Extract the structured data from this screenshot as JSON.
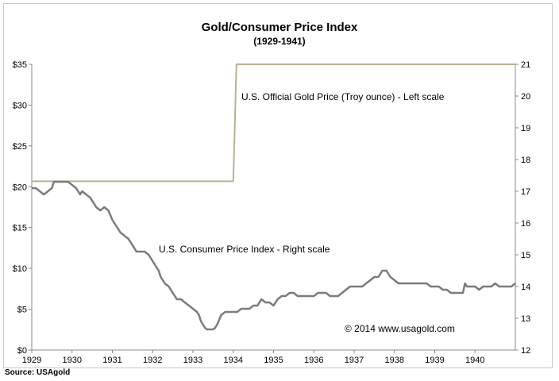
{
  "chart_data": {
    "type": "line",
    "title": "Gold/Consumer Price Index",
    "subtitle": "(1929-1941)",
    "source": "Source: USAgold",
    "copyright": "© 2014 www.usagold.com",
    "left_axis": {
      "ylim": [
        0,
        35
      ],
      "ticks": [
        0,
        5,
        10,
        15,
        20,
        25,
        30,
        35
      ],
      "tick_labels": [
        "$0",
        "$5",
        "$10",
        "$15",
        "$20",
        "$25",
        "$30",
        "$35"
      ]
    },
    "right_axis": {
      "ylim": [
        12,
        21
      ],
      "ticks": [
        12,
        13,
        14,
        15,
        16,
        17,
        18,
        19,
        20,
        21
      ],
      "tick_labels": [
        "12",
        "13",
        "14",
        "15",
        "16",
        "17",
        "18",
        "19",
        "20",
        "21"
      ]
    },
    "x_axis": {
      "xlim": [
        1929.0,
        1941.0
      ],
      "ticks": [
        1929,
        1930,
        1931,
        1932,
        1933,
        1934,
        1935,
        1936,
        1937,
        1938,
        1939,
        1940
      ],
      "tick_labels": [
        "1929",
        "1930",
        "1931",
        "1932",
        "1933",
        "1934",
        "1935",
        "1936",
        "1937",
        "1938",
        "1939",
        "1940"
      ]
    },
    "grid": false,
    "series": [
      {
        "name": "U.S. Official Gold Price (Troy ounce) - Left scale",
        "axis": "left",
        "color": "#b9b193",
        "points": [
          [
            1929.0,
            20.67
          ],
          [
            1934.0,
            20.67
          ],
          [
            1934.08,
            35.0
          ],
          [
            1941.0,
            35.0
          ]
        ]
      },
      {
        "name": "U.S. Consumer Price Index - Right scale",
        "axis": "right",
        "color": "#7b7b7b",
        "points": [
          [
            1929.0,
            17.1
          ],
          [
            1929.1,
            17.1
          ],
          [
            1929.2,
            17.0
          ],
          [
            1929.3,
            16.9
          ],
          [
            1929.4,
            17.0
          ],
          [
            1929.5,
            17.1
          ],
          [
            1929.55,
            17.3
          ],
          [
            1929.9,
            17.3
          ],
          [
            1930.0,
            17.2
          ],
          [
            1930.1,
            17.1
          ],
          [
            1930.2,
            16.9
          ],
          [
            1930.25,
            17.0
          ],
          [
            1930.35,
            16.9
          ],
          [
            1930.45,
            16.8
          ],
          [
            1930.55,
            16.6
          ],
          [
            1930.6,
            16.5
          ],
          [
            1930.7,
            16.4
          ],
          [
            1930.8,
            16.5
          ],
          [
            1930.9,
            16.4
          ],
          [
            1931.0,
            16.1
          ],
          [
            1931.1,
            15.9
          ],
          [
            1931.2,
            15.7
          ],
          [
            1931.3,
            15.6
          ],
          [
            1931.4,
            15.5
          ],
          [
            1931.5,
            15.3
          ],
          [
            1931.6,
            15.1
          ],
          [
            1931.7,
            15.1
          ],
          [
            1931.8,
            15.1
          ],
          [
            1931.9,
            15.0
          ],
          [
            1932.0,
            14.8
          ],
          [
            1932.1,
            14.6
          ],
          [
            1932.15,
            14.5
          ],
          [
            1932.2,
            14.3
          ],
          [
            1932.3,
            14.1
          ],
          [
            1932.4,
            14.0
          ],
          [
            1932.5,
            13.8
          ],
          [
            1932.55,
            13.7
          ],
          [
            1932.6,
            13.6
          ],
          [
            1932.7,
            13.6
          ],
          [
            1932.8,
            13.5
          ],
          [
            1932.9,
            13.4
          ],
          [
            1933.0,
            13.3
          ],
          [
            1933.1,
            13.2
          ],
          [
            1933.15,
            13.1
          ],
          [
            1933.2,
            12.9
          ],
          [
            1933.3,
            12.7
          ],
          [
            1933.35,
            12.65
          ],
          [
            1933.5,
            12.65
          ],
          [
            1933.55,
            12.7
          ],
          [
            1933.6,
            12.8
          ],
          [
            1933.65,
            12.95
          ],
          [
            1933.7,
            13.1
          ],
          [
            1933.8,
            13.2
          ],
          [
            1934.0,
            13.2
          ],
          [
            1934.1,
            13.2
          ],
          [
            1934.2,
            13.3
          ],
          [
            1934.4,
            13.3
          ],
          [
            1934.5,
            13.4
          ],
          [
            1934.6,
            13.4
          ],
          [
            1934.7,
            13.6
          ],
          [
            1934.8,
            13.5
          ],
          [
            1934.9,
            13.5
          ],
          [
            1935.0,
            13.4
          ],
          [
            1935.1,
            13.6
          ],
          [
            1935.2,
            13.7
          ],
          [
            1935.3,
            13.7
          ],
          [
            1935.4,
            13.8
          ],
          [
            1935.5,
            13.8
          ],
          [
            1935.6,
            13.7
          ],
          [
            1935.8,
            13.7
          ],
          [
            1936.0,
            13.7
          ],
          [
            1936.1,
            13.8
          ],
          [
            1936.3,
            13.8
          ],
          [
            1936.4,
            13.7
          ],
          [
            1936.6,
            13.7
          ],
          [
            1936.7,
            13.8
          ],
          [
            1936.8,
            13.9
          ],
          [
            1936.9,
            14.0
          ],
          [
            1937.2,
            14.0
          ],
          [
            1937.3,
            14.1
          ],
          [
            1937.4,
            14.2
          ],
          [
            1937.5,
            14.3
          ],
          [
            1937.6,
            14.3
          ],
          [
            1937.65,
            14.4
          ],
          [
            1937.7,
            14.5
          ],
          [
            1937.8,
            14.5
          ],
          [
            1937.85,
            14.4
          ],
          [
            1937.9,
            14.3
          ],
          [
            1938.0,
            14.2
          ],
          [
            1938.1,
            14.1
          ],
          [
            1938.2,
            14.1
          ],
          [
            1938.3,
            14.1
          ],
          [
            1938.4,
            14.1
          ],
          [
            1938.6,
            14.1
          ],
          [
            1938.7,
            14.1
          ],
          [
            1938.8,
            14.1
          ],
          [
            1938.9,
            14.0
          ],
          [
            1939.0,
            14.0
          ],
          [
            1939.1,
            14.0
          ],
          [
            1939.2,
            13.9
          ],
          [
            1939.3,
            13.9
          ],
          [
            1939.4,
            13.8
          ],
          [
            1939.5,
            13.8
          ],
          [
            1939.6,
            13.8
          ],
          [
            1939.7,
            13.8
          ],
          [
            1939.75,
            14.1
          ],
          [
            1939.8,
            14.0
          ],
          [
            1939.9,
            14.0
          ],
          [
            1940.0,
            14.0
          ],
          [
            1940.1,
            13.9
          ],
          [
            1940.2,
            14.0
          ],
          [
            1940.3,
            14.0
          ],
          [
            1940.4,
            14.0
          ],
          [
            1940.5,
            14.1
          ],
          [
            1940.6,
            14.0
          ],
          [
            1940.7,
            14.0
          ],
          [
            1940.8,
            14.0
          ],
          [
            1940.9,
            14.0
          ],
          [
            1941.0,
            14.1
          ]
        ]
      }
    ]
  }
}
